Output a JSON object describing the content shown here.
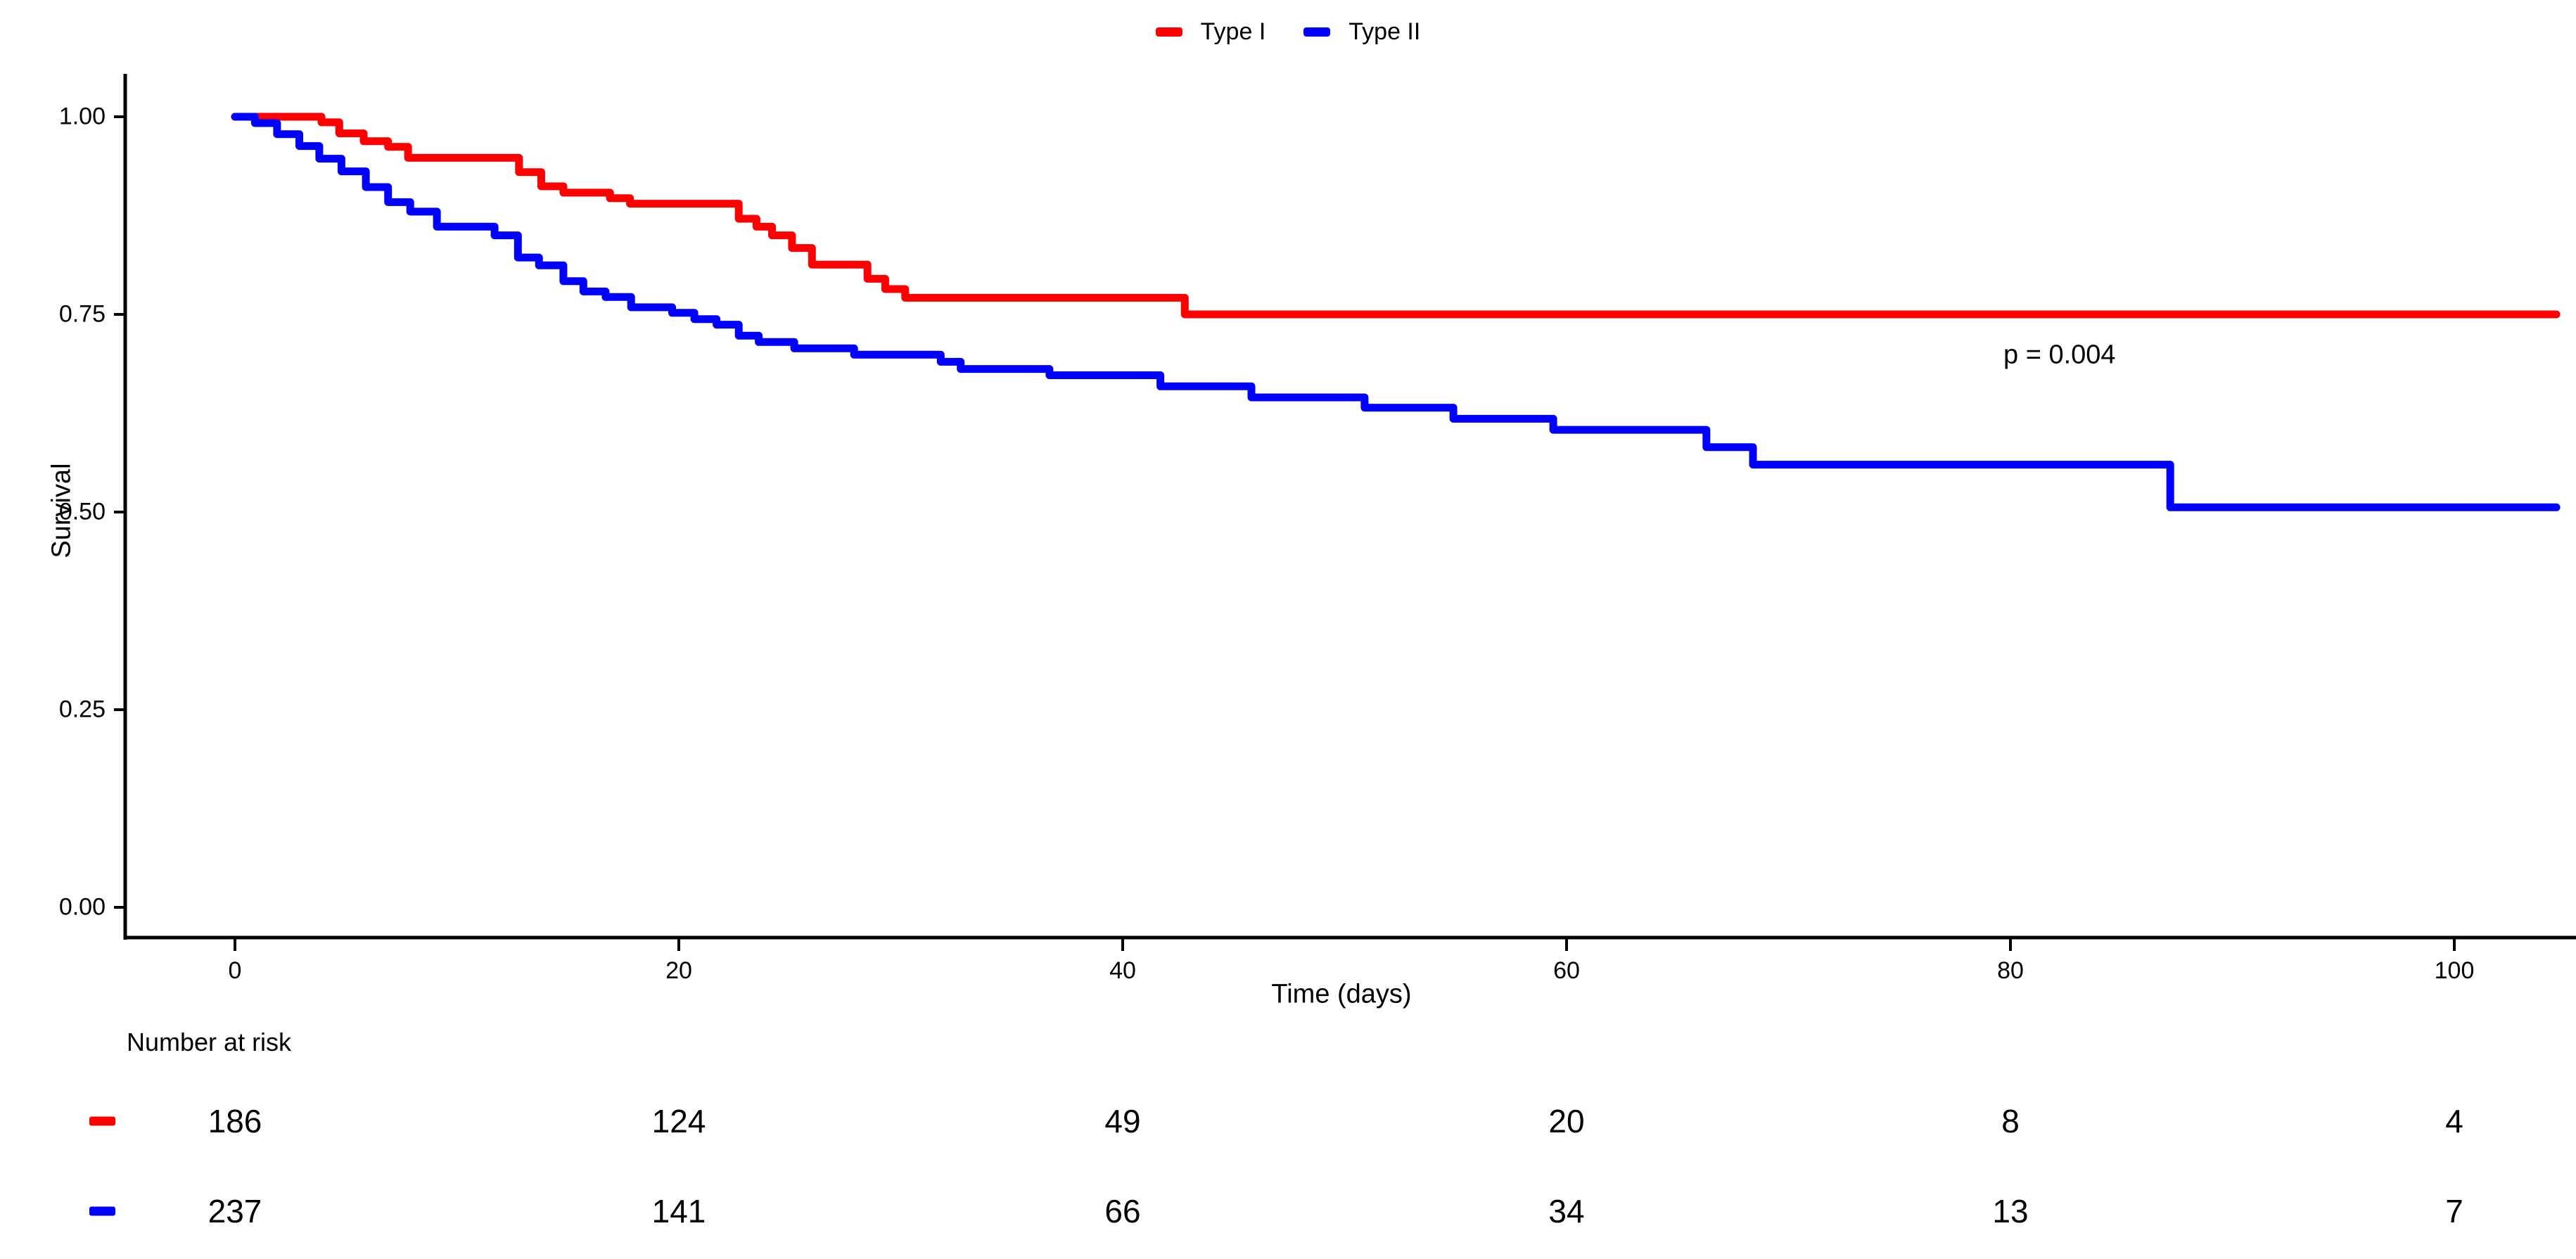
{
  "chart_data": {
    "type": "line",
    "subtype": "kaplan-meier-step-curves",
    "title": "",
    "xlabel": "Time (days)",
    "ylabel": "Survival",
    "grid": false,
    "legend_position": "top-center",
    "xlim": [
      0,
      105
    ],
    "ylim": [
      0.0,
      1.0
    ],
    "x_ticks": [
      {
        "label": "0",
        "value": 0
      },
      {
        "label": "20",
        "value": 20
      },
      {
        "label": "40",
        "value": 40
      },
      {
        "label": "60",
        "value": 60
      },
      {
        "label": "80",
        "value": 80
      },
      {
        "label": "100",
        "value": 100
      }
    ],
    "y_ticks": [
      {
        "label": "0.00",
        "value": 0.0
      },
      {
        "label": "0.25",
        "value": 0.25
      },
      {
        "label": "0.50",
        "value": 0.5
      },
      {
        "label": "0.75",
        "value": 0.75
      },
      {
        "label": "1.00",
        "value": 1.0
      }
    ],
    "annotation": {
      "p_value": "p = 0.004"
    },
    "curve_end_day": 104.6,
    "series": [
      {
        "name": "Type I",
        "color": "#FF0000",
        "points": [
          [
            0,
            1.0
          ],
          [
            3.9,
            0.993
          ],
          [
            4.7,
            0.979
          ],
          [
            5.8,
            0.969
          ],
          [
            6.9,
            0.962
          ],
          [
            7.8,
            0.948
          ],
          [
            12.8,
            0.93
          ],
          [
            13.8,
            0.912
          ],
          [
            14.8,
            0.904
          ],
          [
            16.9,
            0.897
          ],
          [
            17.8,
            0.89
          ],
          [
            22.7,
            0.871
          ],
          [
            23.5,
            0.861
          ],
          [
            24.2,
            0.85
          ],
          [
            25.1,
            0.834
          ],
          [
            26.0,
            0.813
          ],
          [
            28.5,
            0.795
          ],
          [
            29.3,
            0.782
          ],
          [
            30.2,
            0.771
          ],
          [
            42.8,
            0.75
          ],
          [
            104.6,
            0.75
          ]
        ]
      },
      {
        "name": "Type II",
        "color": "#0000FF",
        "points": [
          [
            0,
            1.0
          ],
          [
            0.9,
            0.992
          ],
          [
            1.9,
            0.978
          ],
          [
            2.9,
            0.963
          ],
          [
            3.8,
            0.947
          ],
          [
            4.8,
            0.931
          ],
          [
            5.9,
            0.911
          ],
          [
            6.9,
            0.892
          ],
          [
            7.9,
            0.88
          ],
          [
            9.1,
            0.861
          ],
          [
            11.7,
            0.85
          ],
          [
            12.75,
            0.822
          ],
          [
            13.7,
            0.812
          ],
          [
            14.8,
            0.792
          ],
          [
            15.7,
            0.779
          ],
          [
            16.7,
            0.772
          ],
          [
            17.85,
            0.759
          ],
          [
            19.7,
            0.752
          ],
          [
            20.7,
            0.744
          ],
          [
            21.7,
            0.737
          ],
          [
            22.7,
            0.723
          ],
          [
            23.6,
            0.715
          ],
          [
            25.2,
            0.707
          ],
          [
            27.9,
            0.699
          ],
          [
            31.8,
            0.69
          ],
          [
            32.7,
            0.681
          ],
          [
            36.7,
            0.673
          ],
          [
            41.7,
            0.659
          ],
          [
            45.8,
            0.645
          ],
          [
            50.9,
            0.632
          ],
          [
            54.9,
            0.618
          ],
          [
            59.4,
            0.604
          ],
          [
            66.3,
            0.582
          ],
          [
            68.4,
            0.56
          ],
          [
            87.2,
            0.506
          ],
          [
            104.6,
            0.506
          ]
        ]
      }
    ],
    "risk_table": {
      "title": "Number at risk",
      "times": [
        0,
        20,
        40,
        60,
        80,
        100
      ],
      "rows": [
        {
          "name": "Type I",
          "color": "#FF0000",
          "values": [
            186,
            124,
            49,
            20,
            8,
            4
          ]
        },
        {
          "name": "Type II",
          "color": "#0000FF",
          "values": [
            237,
            141,
            66,
            34,
            13,
            7
          ]
        }
      ]
    }
  }
}
